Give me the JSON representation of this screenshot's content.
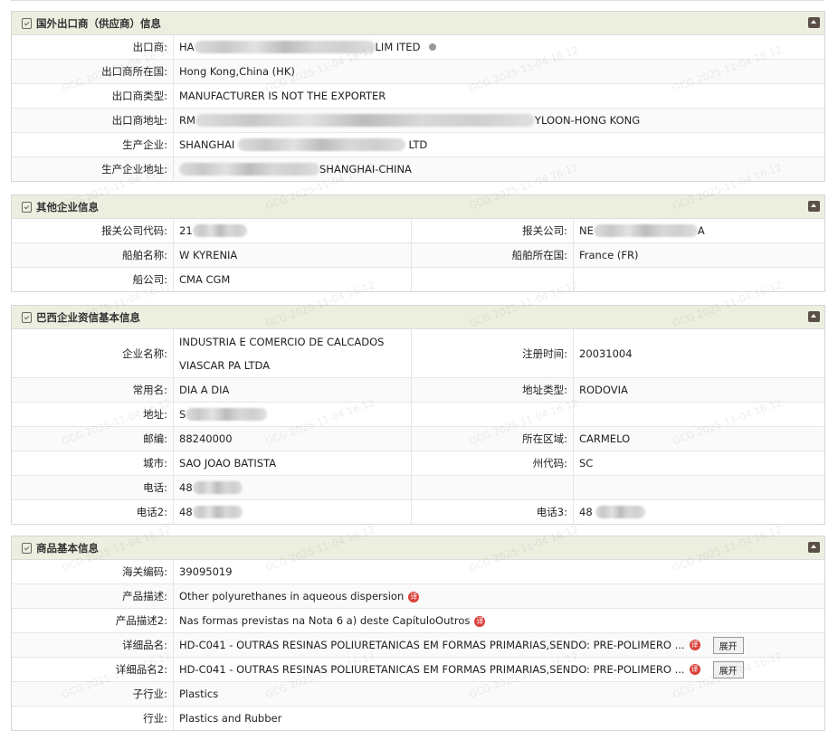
{
  "watermark": "GCG 2025-11-04 16:12",
  "exporter": {
    "title": "国外出口商（供应商）信息",
    "rows": [
      {
        "label": "出口商:",
        "prefix": "HA",
        "suffix": "LIM ITED"
      },
      {
        "label": "出口商所在国:",
        "value": "Hong Kong,China (HK)"
      },
      {
        "label": "出口商类型:",
        "value": "MANUFACTURER IS NOT THE EXPORTER"
      },
      {
        "label": "出口商地址:",
        "prefix": "RM",
        "suffix": "YLOON-HONG KONG"
      },
      {
        "label": "生产企业:",
        "prefix": "SHANGHAI",
        "suffix": "LTD"
      },
      {
        "label": "生产企业地址:",
        "prefix": "",
        "suffix": "SHANGHAI-CHINA"
      }
    ]
  },
  "other": {
    "title": "其他企业信息",
    "rows": [
      {
        "label": "报关公司代码:",
        "prefix": "21",
        "label2": "报关公司:",
        "prefix2": "NE",
        "suffix2": "A"
      },
      {
        "label": "船舶名称:",
        "value": "W KYRENIA",
        "label2": "船舶所在国:",
        "value2": "France (FR)"
      },
      {
        "label": "船公司:",
        "value": "CMA CGM"
      }
    ]
  },
  "brazil": {
    "title": "巴西企业资信基本信息",
    "rows": [
      {
        "label": "企业名称:",
        "value": "INDUSTRIA E COMERCIO DE CALCADOS VIASCAR PA LTDA",
        "label2": "注册时间:",
        "value2": "20031004"
      },
      {
        "label": "常用名:",
        "value": "DIA A DIA",
        "label2": "地址类型:",
        "value2": "RODOVIA"
      },
      {
        "label": "地址:",
        "prefix": "S"
      },
      {
        "label": "邮编:",
        "value": "88240000",
        "label2": "所在区域:",
        "value2": "CARMELO"
      },
      {
        "label": "城市:",
        "value": "SAO JOAO BATISTA",
        "label2": "州代码:",
        "value2": "SC"
      },
      {
        "label": "电话:",
        "prefix": "48"
      },
      {
        "label": "电话2:",
        "prefix": "48",
        "label2": "电话3:",
        "prefix2": "48"
      }
    ]
  },
  "goods": {
    "title": "商品基本信息",
    "translate_icon": "译",
    "expand_label": "展开",
    "rows": [
      {
        "label": "海关编码:",
        "value": "39095019"
      },
      {
        "label": "产品描述:",
        "value": "Other polyurethanes in aqueous dispersion"
      },
      {
        "label": "产品描述2:",
        "value": "Nas formas previstas na Nota 6 a) deste CapítuloOutros"
      },
      {
        "label": "详细品名:",
        "value": "HD-C041 - OUTRAS RESINAS POLIURETANICAS EM FORMAS PRIMARIAS,SENDO: PRE-POLIMERO ..."
      },
      {
        "label": "详细品名2:",
        "value": "HD-C041 - OUTRAS RESINAS POLIURETANICAS EM FORMAS PRIMARIAS,SENDO: PRE-POLIMERO ..."
      },
      {
        "label": "子行业:",
        "value": "Plastics"
      },
      {
        "label": "行业:",
        "value": "Plastics and Rubber"
      }
    ]
  }
}
